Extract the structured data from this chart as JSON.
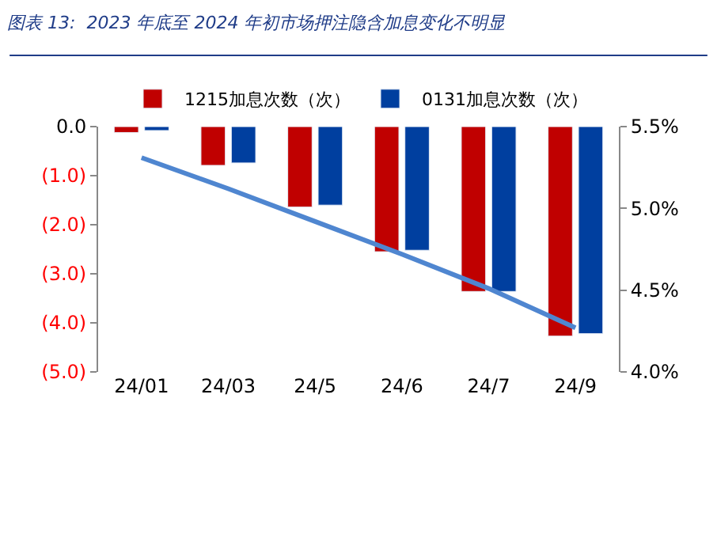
{
  "chart_data": {
    "type": "bar",
    "title": "图表 13:  2023 年底至 2024 年初市场押注隐含加息变化不明显",
    "categories": [
      "24/01",
      "24/03",
      "24/5",
      "24/6",
      "24/7",
      "24/9"
    ],
    "series": [
      {
        "name": "1215加息次数（次）",
        "color": "#c00000",
        "values": [
          -0.12,
          -0.79,
          -1.64,
          -2.55,
          -3.36,
          -4.27
        ]
      },
      {
        "name": "0131加息次数（次）",
        "color": "#003f9f",
        "values": [
          -0.08,
          -0.74,
          -1.6,
          -2.52,
          -3.36,
          -4.22
        ]
      },
      {
        "type": "line",
        "axis": "y2",
        "color": "#4f86d0",
        "values": [
          5.31,
          5.12,
          4.92,
          4.72,
          4.51,
          4.27
        ]
      }
    ],
    "ylim": [
      -5,
      0
    ],
    "yticks": [
      {
        "value": 0,
        "label": "0.0"
      },
      {
        "value": -1,
        "label": "(1.0)"
      },
      {
        "value": -2,
        "label": "(2.0)"
      },
      {
        "value": -3,
        "label": "(3.0)"
      },
      {
        "value": -4,
        "label": "(4.0)"
      },
      {
        "value": -5,
        "label": "(5.0)"
      }
    ],
    "y2lim": [
      4.0,
      5.5
    ],
    "y2ticks": [
      {
        "value": 4.0,
        "label": "4.0%"
      },
      {
        "value": 4.5,
        "label": "4.5%"
      },
      {
        "value": 5.0,
        "label": "5.0%"
      },
      {
        "value": 5.5,
        "label": "5.5%"
      }
    ],
    "legend": "top"
  }
}
